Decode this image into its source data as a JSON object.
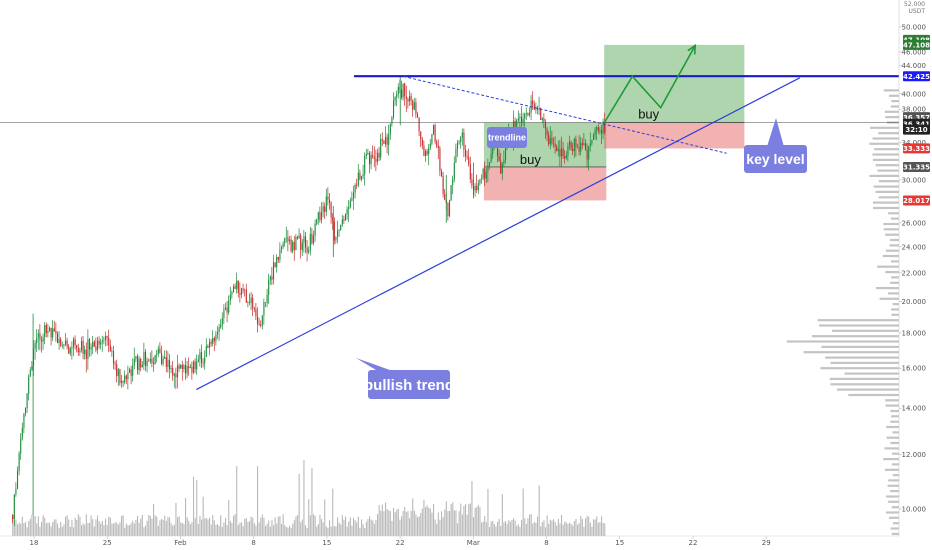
{
  "chart_data": {
    "type": "candlestick",
    "y_axis": {
      "unit_lines": [
        "52.000",
        "USDT"
      ],
      "ticks": [
        10,
        12,
        14,
        16,
        18,
        20,
        22,
        24,
        26,
        28,
        30,
        32,
        34,
        36,
        38,
        40,
        44,
        46,
        48,
        50,
        52
      ],
      "tick_labels": [
        "10.000",
        "12.000",
        "14.000",
        "16.000",
        "18.000",
        "20.000",
        "22.000",
        "24.000",
        "26.000",
        "",
        "30.000",
        "",
        "34.000",
        "",
        "38.000",
        "40.000",
        "44.000",
        "46.000",
        "",
        "50.000",
        ""
      ],
      "range": [
        8.5,
        53
      ]
    },
    "x_axis": {
      "ticks": [
        {
          "label": "18",
          "day": 0
        },
        {
          "label": "25",
          "day": 7
        },
        {
          "label": "Feb",
          "day": 14
        },
        {
          "label": "8",
          "day": 21
        },
        {
          "label": "15",
          "day": 28
        },
        {
          "label": "22",
          "day": 35
        },
        {
          "label": "Mar",
          "day": 42
        },
        {
          "label": "8",
          "day": 49
        },
        {
          "label": "15",
          "day": 56
        },
        {
          "label": "22",
          "day": 63
        },
        {
          "label": "29",
          "day": 70
        }
      ],
      "range_days": [
        -1.8,
        84
      ]
    },
    "price_path": [
      [
        -1.8,
        9.8
      ],
      [
        -0.5,
        14.5
      ],
      [
        0.5,
        17.8
      ],
      [
        1.5,
        18.2
      ],
      [
        3,
        17.3
      ],
      [
        5,
        17.0
      ],
      [
        7,
        17.8
      ],
      [
        8.5,
        15.2
      ],
      [
        10,
        16.2
      ],
      [
        12,
        16.7
      ],
      [
        13.5,
        15.8
      ],
      [
        15,
        16.0
      ],
      [
        16,
        16.4
      ],
      [
        17.5,
        17.8
      ],
      [
        18.5,
        19.5
      ],
      [
        19.5,
        21.0
      ],
      [
        21,
        20.0
      ],
      [
        21.8,
        18.5
      ],
      [
        23,
        22.0
      ],
      [
        24,
        24.0
      ],
      [
        25.5,
        24.6
      ],
      [
        26.5,
        24.0
      ],
      [
        27.5,
        26.8
      ],
      [
        28.5,
        28.0
      ],
      [
        29,
        24.0
      ],
      [
        30,
        27.0
      ],
      [
        31,
        29.5
      ],
      [
        32,
        32.0
      ],
      [
        33,
        33.0
      ],
      [
        34,
        34.5
      ],
      [
        34.5,
        37.5
      ],
      [
        35,
        41.0
      ],
      [
        35.7,
        40.4
      ],
      [
        36.7,
        38.0
      ],
      [
        37.5,
        32.0
      ],
      [
        38.5,
        35.5
      ],
      [
        39.2,
        30.0
      ],
      [
        39.8,
        26.5
      ],
      [
        40.5,
        33.0
      ],
      [
        41.2,
        34.5
      ],
      [
        42,
        30.0
      ],
      [
        42.3,
        28.8
      ],
      [
        43.1,
        30.2
      ],
      [
        43.8,
        32.0
      ],
      [
        44.3,
        34.5
      ],
      [
        44.9,
        31.0
      ],
      [
        45.6,
        35.0
      ],
      [
        46.3,
        35.8
      ],
      [
        47.1,
        37.0
      ],
      [
        47.8,
        38.5
      ],
      [
        48.5,
        37.5
      ],
      [
        49.2,
        35.0
      ],
      [
        49.9,
        33.5
      ],
      [
        50.8,
        32.5
      ],
      [
        51.5,
        33.5
      ],
      [
        52.3,
        34.0
      ],
      [
        53.1,
        33.0
      ],
      [
        53.9,
        35.5
      ],
      [
        54.8,
        36.0
      ]
    ],
    "annotations": {
      "key_level": {
        "price": 42.425,
        "label": "key level",
        "axis_label": "42.425"
      },
      "current_price_line": {
        "price": 36.341
      },
      "trendline": {
        "label": "trendline",
        "from": [
          35.6,
          42.4
        ],
        "to": [
          66.5,
          32.8
        ]
      },
      "bullish_trend": {
        "label": "bullish trend",
        "from": [
          15.8,
          14.9
        ],
        "to": [
          73.5,
          42.2
        ]
      },
      "position_1": {
        "label": "buy",
        "start_day": 43.3,
        "end_day": 55.0,
        "entry": 31.335,
        "target": 36.341,
        "stop": 28.017
      },
      "position_2": {
        "label": "buy",
        "start_day": 54.8,
        "end_day": 68.2,
        "entry": 36.341,
        "target": 47.108,
        "stop": 33.333
      },
      "projected_path": [
        [
          54.8,
          36.3
        ],
        [
          57.5,
          42.4
        ],
        [
          60.2,
          38.2
        ],
        [
          63.5,
          47.0
        ]
      ]
    },
    "price_labels": [
      {
        "text": "47.108",
        "price": 47.9,
        "color": "#2e7d32"
      },
      {
        "text": "47.108",
        "price": 47.1,
        "color": "#2e7d32"
      },
      {
        "text": "42.425",
        "price": 42.425,
        "color": "#1a1aff"
      },
      {
        "text": "36.357",
        "price": 37.0,
        "color": "#555555"
      },
      {
        "text": "36.341",
        "price": 36.2,
        "color": "#222222"
      },
      {
        "text": "32:10",
        "price": 35.5,
        "color": "#222222"
      },
      {
        "text": "33.333",
        "price": 33.333,
        "color": "#e53935"
      },
      {
        "text": "31.335",
        "price": 31.335,
        "color": "#555555"
      },
      {
        "text": "28.017",
        "price": 28.017,
        "color": "#e53935"
      }
    ]
  }
}
